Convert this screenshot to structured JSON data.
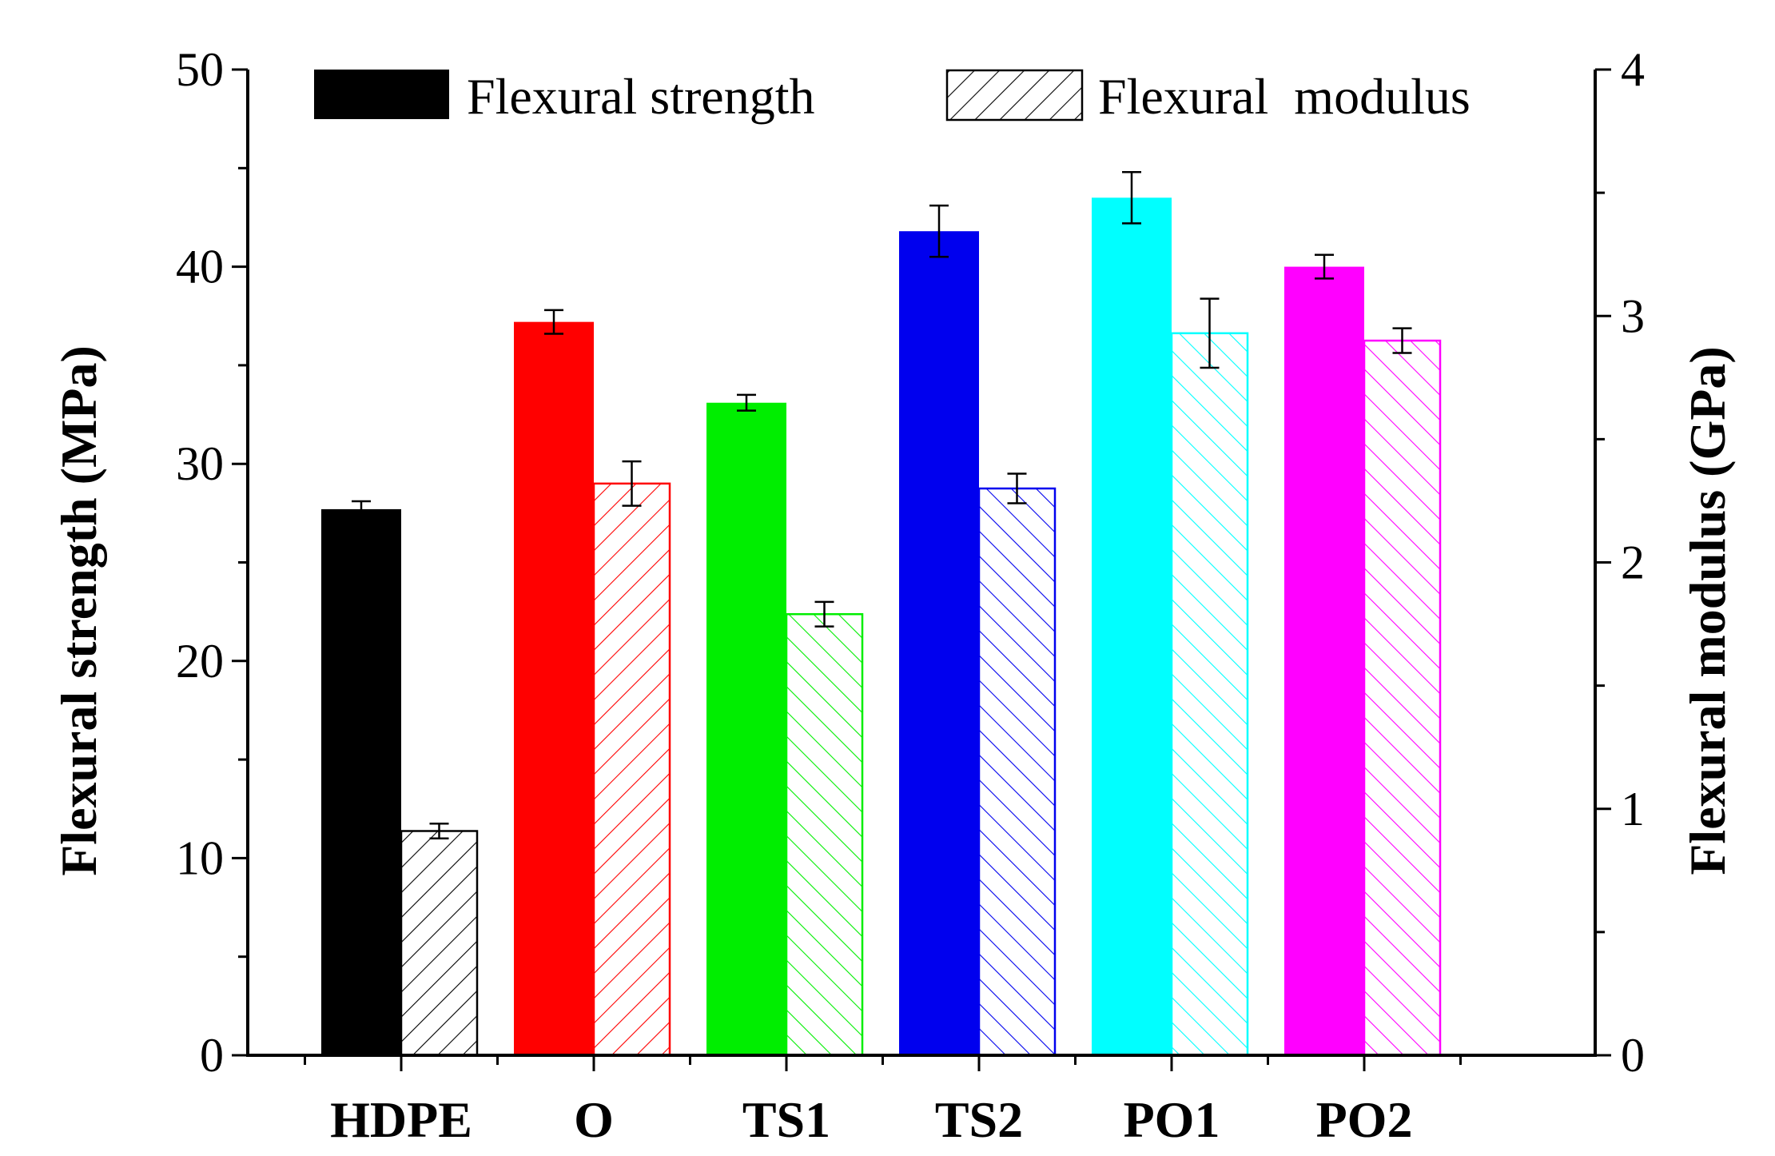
{
  "chart_data": {
    "type": "bar",
    "categories": [
      "HDPE",
      "O",
      "TS1",
      "TS2",
      "PO1",
      "PO2"
    ],
    "colors": [
      "#000000",
      "#ff0000",
      "#00ee00",
      "#0000ee",
      "#00ffff",
      "#ff00ff"
    ],
    "left_axis": {
      "title": "Flexural strength (MPa)",
      "min": 0,
      "max": 50,
      "ticks": [
        0,
        10,
        20,
        30,
        40,
        50
      ],
      "minor_step": 5
    },
    "right_axis": {
      "title": "Flexural  modulus (GPa)",
      "min": 0,
      "max": 4,
      "ticks": [
        0,
        1,
        2,
        3,
        4
      ],
      "minor_step": 0.5
    },
    "series": [
      {
        "name": "Flexural strength",
        "axis": "left",
        "style": "solid",
        "values": [
          27.7,
          37.2,
          33.1,
          41.8,
          43.5,
          40.0
        ],
        "errors": [
          0.4,
          0.6,
          0.4,
          1.3,
          1.3,
          0.6
        ]
      },
      {
        "name": "Flexural  modulus",
        "axis": "right",
        "style": "hatched",
        "values": [
          0.91,
          2.32,
          1.79,
          2.3,
          2.93,
          2.9
        ],
        "errors": [
          0.03,
          0.09,
          0.05,
          0.06,
          0.14,
          0.05
        ]
      }
    ],
    "legend": {
      "position": "top",
      "entries": [
        "Flexural strength",
        "Flexural  modulus"
      ]
    }
  }
}
